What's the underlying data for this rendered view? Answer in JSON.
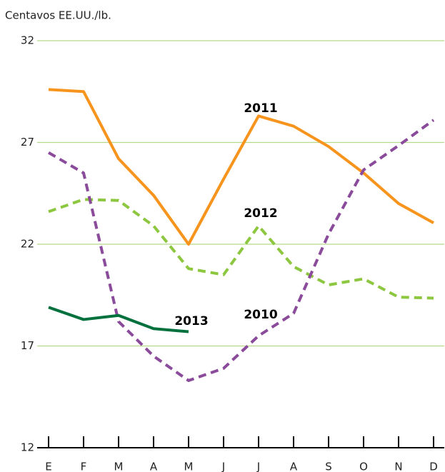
{
  "chart_data": {
    "type": "line",
    "y_label": "Centavos EE.UU./lb.",
    "categories": [
      "E",
      "F",
      "M",
      "A",
      "M",
      "J",
      "J",
      "A",
      "S",
      "O",
      "N",
      "D"
    ],
    "ylim": [
      12,
      32
    ],
    "yticks": [
      12,
      17,
      22,
      27,
      32
    ],
    "grid": true,
    "series": [
      {
        "name": "2011",
        "color": "#f7941d",
        "dashed": false,
        "values": [
          29.6,
          29.5,
          26.2,
          24.4,
          22.0,
          25.2,
          28.3,
          27.8,
          26.8,
          25.5,
          24.0,
          23.05
        ]
      },
      {
        "name": "2012",
        "color": "#8dc63f",
        "dashed": true,
        "values": [
          23.6,
          24.2,
          24.15,
          22.9,
          20.8,
          20.5,
          22.9,
          20.9,
          20.0,
          20.3,
          19.4,
          19.35
        ]
      },
      {
        "name": "2010",
        "color": "#8b4b9b",
        "dashed": true,
        "values": [
          26.5,
          25.5,
          18.2,
          16.5,
          15.3,
          15.9,
          17.5,
          18.6,
          22.5,
          25.65,
          26.85,
          28.1
        ]
      },
      {
        "name": "2013",
        "color": "#00703c",
        "dashed": false,
        "values": [
          18.9,
          18.3,
          18.5,
          17.85,
          17.7,
          null,
          null,
          null,
          null,
          null,
          null,
          null
        ]
      }
    ]
  }
}
